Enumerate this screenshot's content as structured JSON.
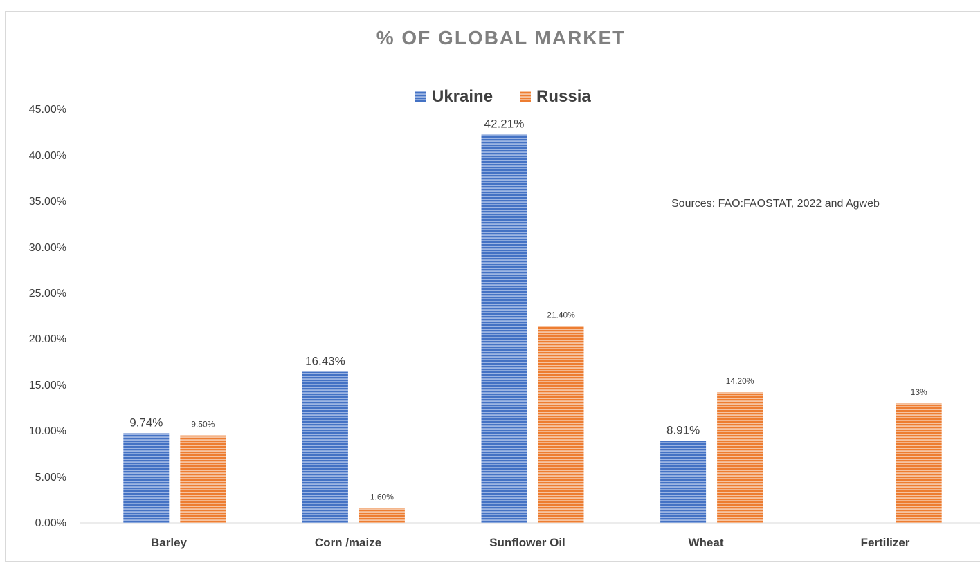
{
  "chart_data": {
    "type": "bar",
    "title": "% OF GLOBAL MARKET",
    "xlabel": "",
    "ylabel": "",
    "categories": [
      "Barley",
      "Corn /maize",
      "Sunflower Oil",
      "Wheat",
      "Fertilizer"
    ],
    "series": [
      {
        "name": "Ukraine",
        "color": "#4472c4",
        "values": [
          9.74,
          16.43,
          42.21,
          8.91,
          null
        ],
        "labels": [
          "9.74%",
          "16.43%",
          "42.21%",
          "8.91%",
          ""
        ]
      },
      {
        "name": "Russia",
        "color": "#ed7d31",
        "values": [
          9.5,
          1.6,
          21.4,
          14.2,
          13
        ],
        "labels": [
          "9.50%",
          "1.60%",
          "21.40%",
          "14.20%",
          "13%"
        ]
      }
    ],
    "ylim": [
      0,
      45
    ],
    "yticks": [
      "0.00%",
      "5.00%",
      "10.00%",
      "15.00%",
      "20.00%",
      "25.00%",
      "30.00%",
      "35.00%",
      "40.00%",
      "45.00%"
    ],
    "legend_position": "top",
    "grid": false,
    "bar_pattern": "horizontal-stripes",
    "annotation": "Sources: FAO:FAOSTAT, 2022 and Agweb"
  }
}
